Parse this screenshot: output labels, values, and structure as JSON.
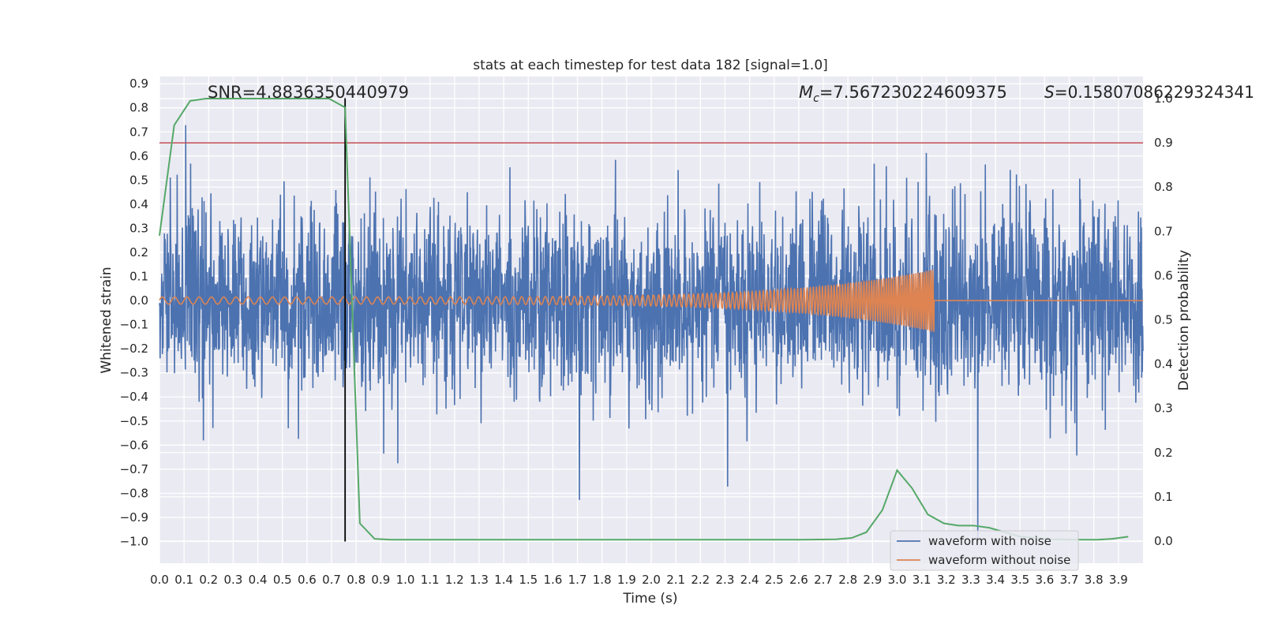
{
  "chart_data": {
    "type": "line",
    "title": "stats at each timestep for test data 182 [signal=1.0]",
    "xlabel": "Time (s)",
    "ylabel": "Whitened strain",
    "y2label": "Detection probability",
    "xlim": [
      0.0,
      4.0
    ],
    "ylim": [
      -1.09,
      0.93
    ],
    "y2lim": [
      -0.05,
      1.05
    ],
    "grid": true,
    "x_ticks": [
      "0.0",
      "0.1",
      "0.2",
      "0.3",
      "0.4",
      "0.5",
      "0.6",
      "0.7",
      "0.8",
      "0.9",
      "1.0",
      "1.1",
      "1.2",
      "1.3",
      "1.4",
      "1.5",
      "1.6",
      "1.7",
      "1.8",
      "1.9",
      "2.0",
      "2.1",
      "2.2",
      "2.3",
      "2.4",
      "2.5",
      "2.6",
      "2.7",
      "2.8",
      "2.9",
      "3.0",
      "3.1",
      "3.2",
      "3.3",
      "3.4",
      "3.5",
      "3.6",
      "3.7",
      "3.8",
      "3.9"
    ],
    "y_ticks": [
      "0.9",
      "0.8",
      "0.7",
      "0.6",
      "0.5",
      "0.4",
      "0.3",
      "0.2",
      "0.1",
      "0.0",
      "−0.1",
      "−0.2",
      "−0.3",
      "−0.4",
      "−0.5",
      "−0.6",
      "−0.7",
      "−0.8",
      "−0.9",
      "−1.0"
    ],
    "y2_ticks": [
      "1.0",
      "0.9",
      "0.8",
      "0.7",
      "0.6",
      "0.5",
      "0.4",
      "0.3",
      "0.2",
      "0.1",
      "0.0"
    ],
    "annotations": {
      "snr": "SNR=4.8836350440979",
      "mc_symbol": "M",
      "mc_sub": "c",
      "mc_value": "=7.567230224609375",
      "s_symbol": "S",
      "s_value": "=0.15807086229324341"
    },
    "legend": {
      "placement": "lower-right",
      "entries": [
        "waveform with noise",
        "waveform without noise"
      ]
    },
    "threshold": {
      "axis": "y2",
      "value": 0.9,
      "color": "#c44e52"
    },
    "merger_marker": {
      "x": 0.755,
      "y_range": [
        -1.0,
        0.84
      ],
      "color": "#000000"
    },
    "series": [
      {
        "name": "waveform with noise",
        "axis": "y",
        "color": "#4c72b0",
        "noise_amplitude": 0.35,
        "extreme_range": [
          -1.0,
          0.84
        ]
      },
      {
        "name": "waveform without noise",
        "axis": "y",
        "color": "#dd8452",
        "chirp": {
          "t_start": 0.0,
          "t_merger": 3.15,
          "amp_start": 0.015,
          "amp_peak": 0.13,
          "freq_start": 20,
          "freq_end": 120
        }
      },
      {
        "axis": "y2",
        "color": "#55a868",
        "x": [
          0.0,
          0.06,
          0.125,
          0.19,
          0.25,
          0.31,
          0.375,
          0.44,
          0.5,
          0.56,
          0.625,
          0.69,
          0.755,
          0.815,
          0.875,
          0.94,
          1.0,
          1.25,
          1.31,
          1.375,
          1.5,
          2.0,
          2.5,
          2.6,
          2.75,
          2.815,
          2.875,
          2.94,
          3.0,
          3.06,
          3.125,
          3.19,
          3.25,
          3.31,
          3.375,
          3.5,
          3.625,
          3.75,
          3.815,
          3.875,
          3.94
        ],
        "values": [
          0.69,
          0.94,
          0.995,
          1.0,
          1.0,
          1.0,
          1.0,
          1.0,
          1.0,
          1.0,
          1.0,
          1.0,
          0.98,
          0.04,
          0.005,
          0.003,
          0.003,
          0.003,
          0.003,
          0.003,
          0.003,
          0.003,
          0.003,
          0.003,
          0.004,
          0.007,
          0.02,
          0.07,
          0.16,
          0.12,
          0.06,
          0.04,
          0.035,
          0.035,
          0.03,
          0.01,
          0.004,
          0.003,
          0.003,
          0.005,
          0.01
        ]
      }
    ]
  }
}
